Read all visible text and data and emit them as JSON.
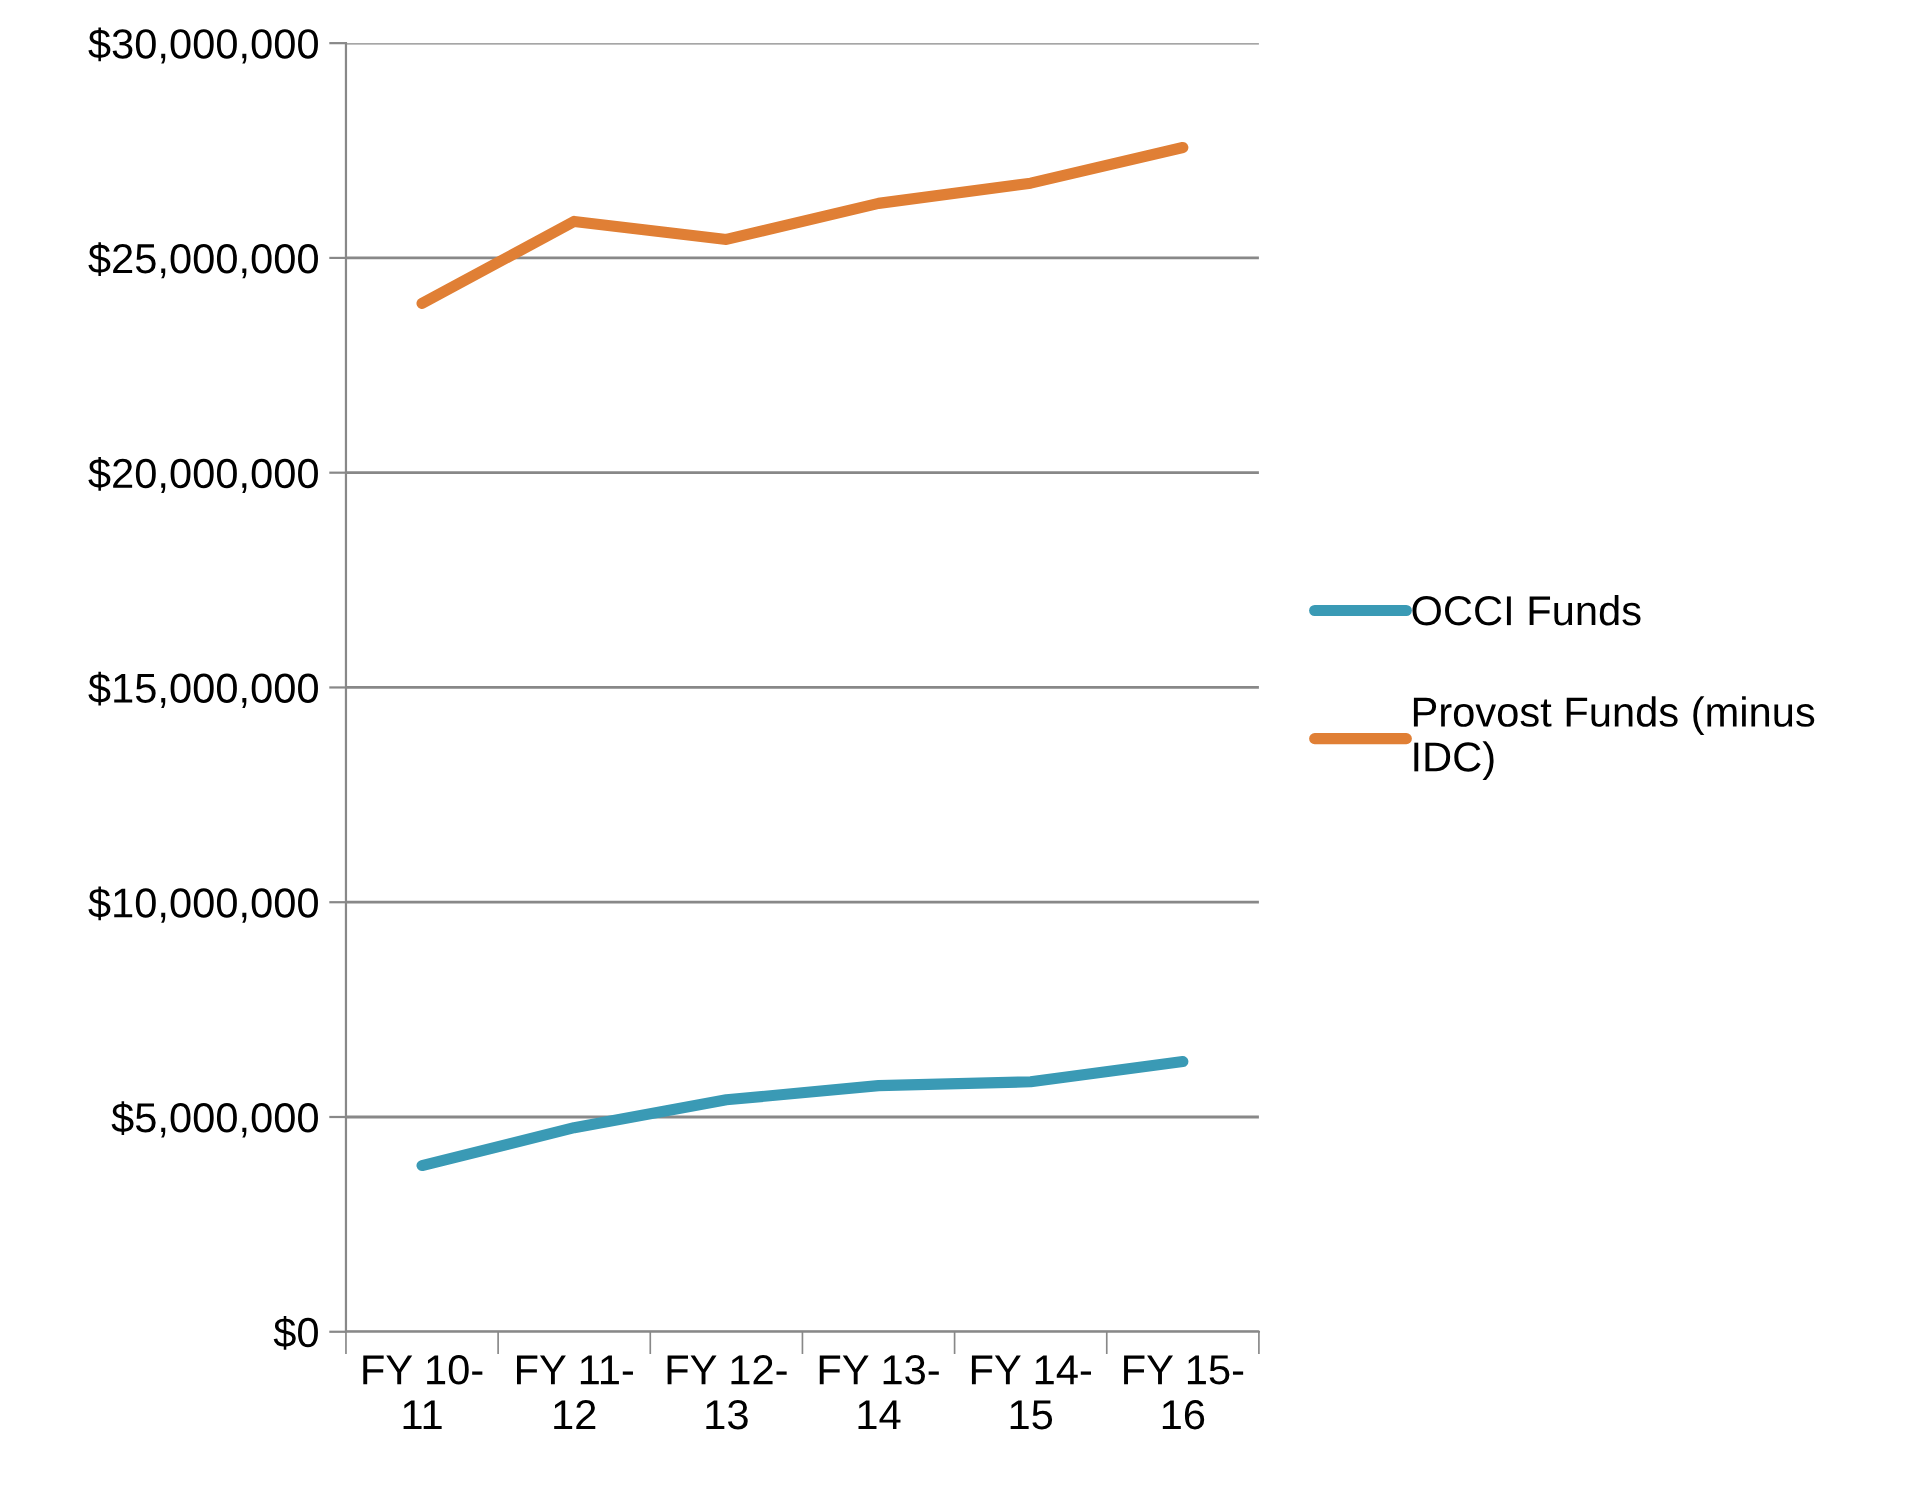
{
  "chart_data": {
    "type": "line",
    "categories": [
      "FY 10-11",
      "FY 11-12",
      "FY 12-13",
      "FY 13-14",
      "FY 14-15",
      "FY 15-16"
    ],
    "series": [
      {
        "name": "OCCI Funds",
        "color": "#3a9ab5",
        "values": [
          3870000,
          4750000,
          5400000,
          5730000,
          5820000,
          6290000
        ]
      },
      {
        "name": "Provost Funds (minus IDC)",
        "color": "#e07f35",
        "values": [
          23940000,
          25850000,
          25430000,
          26270000,
          26740000,
          27570000
        ]
      }
    ],
    "ylim": [
      0,
      30000000
    ],
    "yticks": [
      {
        "value": 0,
        "label": "$0"
      },
      {
        "value": 5000000,
        "label": "$5,000,000"
      },
      {
        "value": 10000000,
        "label": "$10,000,000"
      },
      {
        "value": 15000000,
        "label": "$15,000,000"
      },
      {
        "value": 20000000,
        "label": "$20,000,000"
      },
      {
        "value": 25000000,
        "label": "$25,000,000"
      },
      {
        "value": 30000000,
        "label": "$30,000,000"
      }
    ],
    "grid": "y",
    "legend": "right",
    "marker": "none",
    "line_style": "solid"
  }
}
